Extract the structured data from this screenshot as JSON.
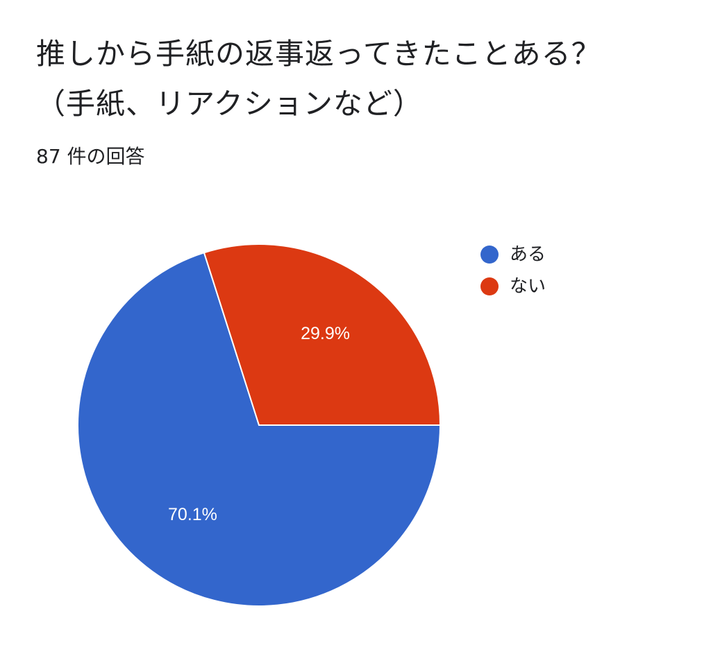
{
  "question": {
    "title": "推しから手紙の返事返ってきたことある？（手紙、リアクションなど）",
    "response_count": "87 件の回答"
  },
  "colors": {
    "series_1": "#3366cc",
    "series_2": "#dc3912"
  },
  "chart_data": {
    "type": "pie",
    "labels": [
      "ある",
      "ない"
    ],
    "values": [
      70.1,
      29.9
    ],
    "value_labels": [
      "70.1%",
      "29.9%"
    ],
    "colors": [
      "#3366cc",
      "#dc3912"
    ],
    "legend": "right"
  }
}
